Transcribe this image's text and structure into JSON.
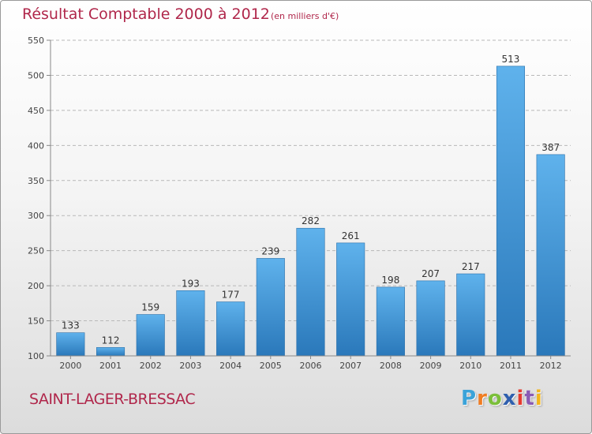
{
  "header": {
    "title": "Résultat Comptable 2000 à 2012",
    "subtitle": "(en milliers d'€)"
  },
  "footer": {
    "commune": "SAINT-LAGER-BRESSAC",
    "logo_letters": [
      "P",
      "r",
      "o",
      "x",
      "i",
      "t",
      "i"
    ]
  },
  "colors": {
    "title": "#b0274b",
    "bar_light": "#5fb2ec",
    "bar_dark": "#2a78ba"
  },
  "chart_data": {
    "type": "bar",
    "title": "Résultat Comptable 2000 à 2012",
    "subtitle": "(en milliers d'€)",
    "xlabel": "",
    "ylabel": "",
    "categories": [
      "2000",
      "2001",
      "2002",
      "2003",
      "2004",
      "2005",
      "2006",
      "2007",
      "2008",
      "2009",
      "2010",
      "2011",
      "2012"
    ],
    "values": [
      133,
      112,
      159,
      193,
      177,
      239,
      282,
      261,
      198,
      207,
      217,
      513,
      387
    ],
    "ylim": [
      100,
      550
    ],
    "yticks": [
      100,
      150,
      200,
      250,
      300,
      350,
      400,
      450,
      500,
      550
    ],
    "grid": true,
    "data_labels": true
  }
}
